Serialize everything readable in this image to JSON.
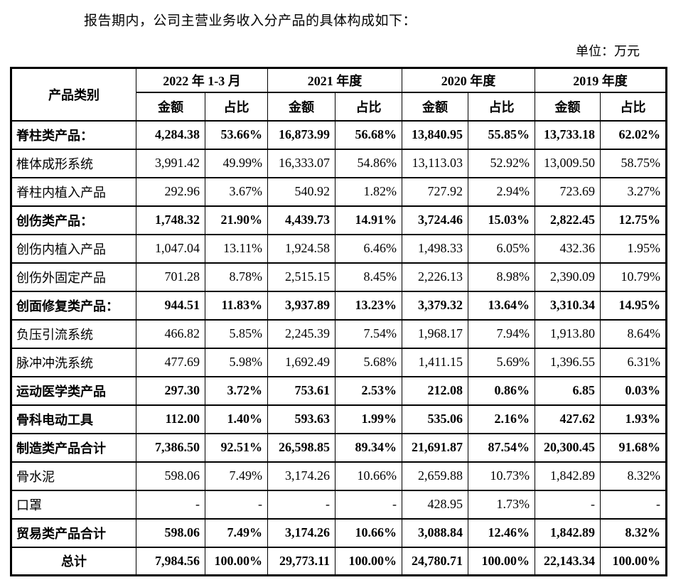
{
  "page": {
    "intro": "报告期内，公司主营业务收入分产品的具体构成如下：",
    "unit_label": "单位：万元"
  },
  "table": {
    "header": {
      "category": "产品类别",
      "periods": [
        "2022 年 1-3 月",
        "2021 年度",
        "2020 年度",
        "2019 年度"
      ],
      "amount_label": "金额",
      "ratio_label": "占比"
    },
    "rows": [
      {
        "label": "脊柱类产品：",
        "bold": true,
        "center": false,
        "values": [
          "4,284.38",
          "53.66%",
          "16,873.99",
          "56.68%",
          "13,840.95",
          "55.85%",
          "13,733.18",
          "62.02%"
        ]
      },
      {
        "label": "椎体成形系统",
        "bold": false,
        "center": false,
        "values": [
          "3,991.42",
          "49.99%",
          "16,333.07",
          "54.86%",
          "13,113.03",
          "52.92%",
          "13,009.50",
          "58.75%"
        ]
      },
      {
        "label": "脊柱内植入产品",
        "bold": false,
        "center": false,
        "values": [
          "292.96",
          "3.67%",
          "540.92",
          "1.82%",
          "727.92",
          "2.94%",
          "723.69",
          "3.27%"
        ]
      },
      {
        "label": "创伤类产品：",
        "bold": true,
        "center": false,
        "values": [
          "1,748.32",
          "21.90%",
          "4,439.73",
          "14.91%",
          "3,724.46",
          "15.03%",
          "2,822.45",
          "12.75%"
        ]
      },
      {
        "label": "创伤内植入产品",
        "bold": false,
        "center": false,
        "values": [
          "1,047.04",
          "13.11%",
          "1,924.58",
          "6.46%",
          "1,498.33",
          "6.05%",
          "432.36",
          "1.95%"
        ]
      },
      {
        "label": "创伤外固定产品",
        "bold": false,
        "center": false,
        "values": [
          "701.28",
          "8.78%",
          "2,515.15",
          "8.45%",
          "2,226.13",
          "8.98%",
          "2,390.09",
          "10.79%"
        ]
      },
      {
        "label": "创面修复类产品：",
        "bold": true,
        "center": false,
        "values": [
          "944.51",
          "11.83%",
          "3,937.89",
          "13.23%",
          "3,379.32",
          "13.64%",
          "3,310.34",
          "14.95%"
        ]
      },
      {
        "label": "负压引流系统",
        "bold": false,
        "center": false,
        "values": [
          "466.82",
          "5.85%",
          "2,245.39",
          "7.54%",
          "1,968.17",
          "7.94%",
          "1,913.80",
          "8.64%"
        ]
      },
      {
        "label": "脉冲冲洗系统",
        "bold": false,
        "center": false,
        "values": [
          "477.69",
          "5.98%",
          "1,692.49",
          "5.68%",
          "1,411.15",
          "5.69%",
          "1,396.55",
          "6.31%"
        ]
      },
      {
        "label": "运动医学类产品",
        "bold": true,
        "center": false,
        "values": [
          "297.30",
          "3.72%",
          "753.61",
          "2.53%",
          "212.08",
          "0.86%",
          "6.85",
          "0.03%"
        ]
      },
      {
        "label": "骨科电动工具",
        "bold": true,
        "center": false,
        "values": [
          "112.00",
          "1.40%",
          "593.63",
          "1.99%",
          "535.06",
          "2.16%",
          "427.62",
          "1.93%"
        ]
      },
      {
        "label": "制造类产品合计",
        "bold": true,
        "center": false,
        "values": [
          "7,386.50",
          "92.51%",
          "26,598.85",
          "89.34%",
          "21,691.87",
          "87.54%",
          "20,300.45",
          "91.68%"
        ]
      },
      {
        "label": "骨水泥",
        "bold": false,
        "center": false,
        "values": [
          "598.06",
          "7.49%",
          "3,174.26",
          "10.66%",
          "2,659.88",
          "10.73%",
          "1,842.89",
          "8.32%"
        ]
      },
      {
        "label": "口罩",
        "bold": false,
        "center": false,
        "values": [
          "-",
          "-",
          "-",
          "-",
          "428.95",
          "1.73%",
          "-",
          "-"
        ]
      },
      {
        "label": "贸易类产品合计",
        "bold": true,
        "center": false,
        "values": [
          "598.06",
          "7.49%",
          "3,174.26",
          "10.66%",
          "3,088.84",
          "12.46%",
          "1,842.89",
          "8.32%"
        ]
      },
      {
        "label": "总计",
        "bold": true,
        "center": true,
        "values": [
          "7,984.56",
          "100.00%",
          "29,773.11",
          "100.00%",
          "24,780.71",
          "100.00%",
          "22,143.34",
          "100.00%"
        ]
      }
    ]
  }
}
